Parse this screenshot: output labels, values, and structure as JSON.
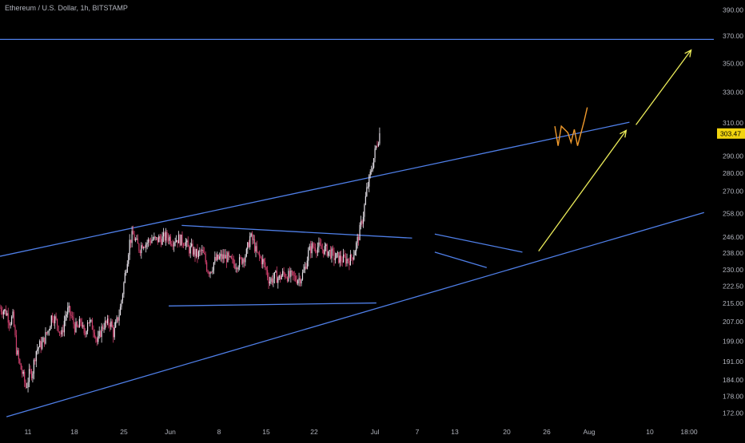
{
  "legend": {
    "title": "Ethereum / U.S. Dollar, 1h, BITSTAMP"
  },
  "colors": {
    "background": "#000000",
    "candle_up": "#e9e4ec",
    "candle_down": "#d2406e",
    "trendline": "#4f7fe8",
    "projection": "#ecec5a",
    "path_projection": "#f09a2c",
    "price_tag": "#f1d40f",
    "axis_text": "#b2b5be",
    "grid": "#131313"
  },
  "chart_data": {
    "type": "candlestick",
    "title": "Ethereum / U.S. Dollar, 1h, BITSTAMP",
    "x_tick_labels": [
      "11",
      "18",
      "25",
      "Jun",
      "8",
      "15",
      "22",
      "Jul",
      "7",
      "13",
      "20",
      "26",
      "Aug",
      "10",
      "18:00"
    ],
    "y_tick_labels": [
      "390.00",
      "370.00",
      "350.00",
      "330.00",
      "310.00",
      "290.00",
      "280.00",
      "270.00",
      "258.00",
      "246.00",
      "238.00",
      "230.00",
      "222.50",
      "215.00",
      "207.00",
      "199.00",
      "191.00",
      "184.00",
      "178.00",
      "172.00"
    ],
    "y_tick_values": [
      390,
      370,
      350,
      330,
      310,
      290,
      280,
      270,
      258,
      246,
      238,
      230,
      222.5,
      215,
      207,
      199,
      191,
      184,
      178,
      172
    ],
    "axis_type": "log",
    "last_price": "303.47",
    "last_price_value": 303.47,
    "grid": false,
    "close_path": [
      [
        0,
        213
      ],
      [
        1,
        212
      ],
      [
        2,
        211
      ],
      [
        3,
        207
      ],
      [
        4,
        209
      ],
      [
        5,
        196
      ],
      [
        6,
        190
      ],
      [
        7,
        186
      ],
      [
        8,
        181
      ],
      [
        9,
        186
      ],
      [
        10,
        187
      ],
      [
        11,
        195
      ],
      [
        12,
        197
      ],
      [
        13,
        198
      ],
      [
        14,
        201
      ],
      [
        15,
        204
      ],
      [
        16,
        210
      ],
      [
        17,
        208
      ],
      [
        18,
        205
      ],
      [
        19,
        201
      ],
      [
        20,
        209
      ],
      [
        21,
        212
      ],
      [
        22,
        209
      ],
      [
        23,
        205
      ],
      [
        24,
        204
      ],
      [
        25,
        208
      ],
      [
        26,
        200
      ],
      [
        27,
        208
      ],
      [
        28,
        206
      ],
      [
        29,
        204
      ],
      [
        30,
        198
      ],
      [
        31,
        203
      ],
      [
        32,
        206
      ],
      [
        33,
        206
      ],
      [
        34,
        207
      ],
      [
        35,
        202
      ],
      [
        36,
        207
      ],
      [
        37,
        212
      ],
      [
        38,
        222
      ],
      [
        39,
        233
      ],
      [
        40,
        244
      ],
      [
        41,
        247
      ],
      [
        42,
        243
      ],
      [
        43,
        240
      ],
      [
        44,
        243
      ],
      [
        45,
        243
      ],
      [
        46,
        244
      ],
      [
        47,
        245
      ],
      [
        48,
        244
      ],
      [
        49,
        245
      ],
      [
        50,
        245
      ],
      [
        51,
        246
      ],
      [
        52,
        246
      ],
      [
        53,
        244
      ],
      [
        54,
        245
      ],
      [
        55,
        245
      ],
      [
        56,
        244
      ],
      [
        57,
        244
      ],
      [
        58,
        240
      ],
      [
        59,
        240
      ],
      [
        60,
        238
      ],
      [
        61,
        237
      ],
      [
        62,
        239
      ],
      [
        63,
        236
      ],
      [
        64,
        230
      ],
      [
        65,
        230
      ],
      [
        66,
        234
      ],
      [
        67,
        235
      ],
      [
        68,
        236
      ],
      [
        69,
        236
      ],
      [
        70,
        236
      ],
      [
        71,
        234
      ],
      [
        72,
        233
      ],
      [
        73,
        233
      ],
      [
        74,
        234
      ],
      [
        75,
        236
      ],
      [
        76,
        238
      ],
      [
        77,
        246
      ],
      [
        78,
        244
      ],
      [
        79,
        238
      ],
      [
        80,
        236
      ],
      [
        81,
        234
      ],
      [
        82,
        230
      ],
      [
        83,
        225
      ],
      [
        84,
        226
      ],
      [
        85,
        227
      ],
      [
        86,
        226
      ],
      [
        87,
        228
      ],
      [
        88,
        228
      ],
      [
        89,
        227
      ],
      [
        90,
        227
      ],
      [
        91,
        226
      ],
      [
        92,
        226
      ],
      [
        93,
        227
      ],
      [
        94,
        231
      ],
      [
        95,
        238
      ],
      [
        96,
        241
      ],
      [
        97,
        241
      ],
      [
        98,
        241
      ],
      [
        99,
        240
      ],
      [
        100,
        240
      ],
      [
        101,
        239
      ],
      [
        102,
        238
      ],
      [
        103,
        236
      ],
      [
        104,
        236
      ],
      [
        105,
        235
      ],
      [
        106,
        235
      ],
      [
        107,
        235
      ],
      [
        108,
        235
      ],
      [
        109,
        238
      ],
      [
        110,
        243
      ],
      [
        111,
        250
      ],
      [
        112,
        258
      ],
      [
        113,
        270
      ],
      [
        114,
        278
      ],
      [
        115,
        287
      ],
      [
        116,
        296
      ],
      [
        117,
        303.47
      ]
    ],
    "x_domain": [
      0,
      220
    ],
    "y_domain": [
      168,
      398
    ],
    "annotations": {
      "trendlines": [
        {
          "name": "channel-upper",
          "from": [
            0,
            236.5
          ],
          "to": [
            194,
            310.5
          ]
        },
        {
          "name": "channel-lower",
          "from": [
            2,
            170.7
          ],
          "to": [
            217,
            258.5
          ]
        },
        {
          "name": "resistance-horizontal",
          "from": [
            0,
            367.4
          ],
          "to": [
            220,
            367.4
          ]
        },
        {
          "name": "triangle-top",
          "from": [
            56,
            251.8
          ],
          "to": [
            127,
            245.4
          ]
        },
        {
          "name": "triangle-bottom",
          "from": [
            52,
            213.8
          ],
          "to": [
            116,
            215.1
          ]
        },
        {
          "name": "wedge-top",
          "from": [
            134,
            247.4
          ],
          "to": [
            161,
            238.5
          ]
        },
        {
          "name": "wedge-bottom",
          "from": [
            134,
            238.5
          ],
          "to": [
            150,
            231.1
          ]
        }
      ],
      "projections": [
        {
          "name": "projection-arrow-1",
          "from": [
            166,
            239
          ],
          "to": [
            193,
            305.4
          ]
        },
        {
          "name": "projection-arrow-2",
          "from": [
            196,
            308.9
          ],
          "to": [
            213,
            359.5
          ]
        }
      ],
      "price_path": [
        [
          171,
          308
        ],
        [
          172,
          296
        ],
        [
          173,
          308
        ],
        [
          175,
          304
        ],
        [
          176,
          298
        ],
        [
          177,
          306
        ],
        [
          178,
          296
        ],
        [
          180,
          311
        ],
        [
          181,
          320
        ]
      ]
    }
  }
}
